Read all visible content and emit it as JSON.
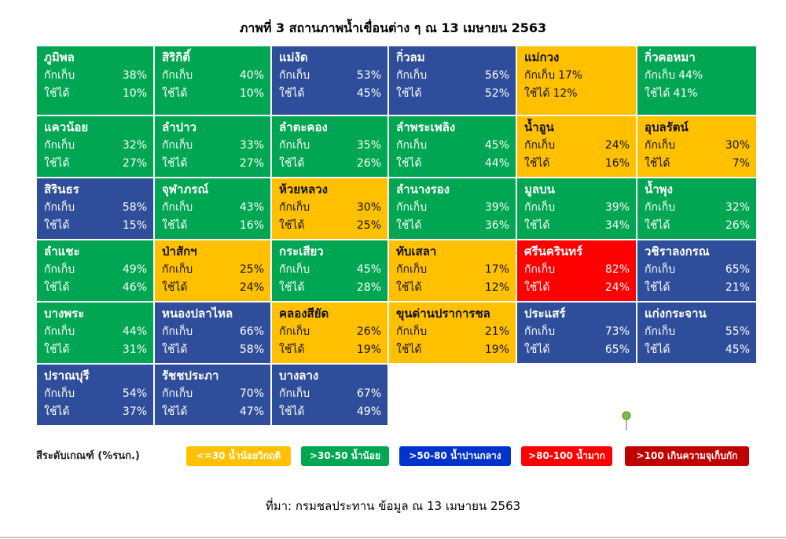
{
  "title": "ภาพที่ 3 สถานภาพน้ำเขื่อนต่าง ๆ ณ 13 เมษายน 2563",
  "labels": {
    "storage": "กักเก็บ",
    "usable": "ใช้ได้"
  },
  "colors": {
    "yellow": "#ffc000",
    "green": "#00a651",
    "blue": "#2e4d9a",
    "red": "#ff0000",
    "darkred": "#c00000",
    "legend_blue": "#0033cc",
    "pin": "#7ac143"
  },
  "chart_data": {
    "type": "heatmap",
    "title": "ภาพที่ 3 สถานภาพน้ำเขื่อนต่าง ๆ ณ 13 เมษายน 2563",
    "columns": 6,
    "dams": [
      {
        "name": "ภูมิพล",
        "storage": "38%",
        "usable": "10%",
        "color": "green"
      },
      {
        "name": "สิริกิติ์",
        "storage": "40%",
        "usable": "10%",
        "color": "green"
      },
      {
        "name": "แม่งัด",
        "storage": "53%",
        "usable": "45%",
        "color": "blue"
      },
      {
        "name": "กิ่วลม",
        "storage": "56%",
        "usable": "52%",
        "color": "blue"
      },
      {
        "name": "แม่กวง",
        "storage": "17%",
        "usable": "12%",
        "color": "yellow",
        "inline": true
      },
      {
        "name": "กิ่วคอหมา",
        "storage": "44%",
        "usable": "41%",
        "color": "green",
        "inline": true
      },
      {
        "name": "แควน้อย",
        "storage": "32%",
        "usable": "27%",
        "color": "green"
      },
      {
        "name": "ลำปาว",
        "storage": "33%",
        "usable": "27%",
        "color": "green"
      },
      {
        "name": "ลำตะคอง",
        "storage": "35%",
        "usable": "26%",
        "color": "green"
      },
      {
        "name": "ลำพระเพลิง",
        "storage": "45%",
        "usable": "44%",
        "color": "green"
      },
      {
        "name": "น้ำอูน",
        "storage": "24%",
        "usable": "16%",
        "color": "yellow"
      },
      {
        "name": "อุบลรัตน์",
        "storage": "30%",
        "usable": "7%",
        "color": "yellow"
      },
      {
        "name": "สิรินธร",
        "storage": "58%",
        "usable": "15%",
        "color": "blue"
      },
      {
        "name": "จุฬาภรณ์",
        "storage": "43%",
        "usable": "16%",
        "color": "green"
      },
      {
        "name": "ห้วยหลวง",
        "storage": "30%",
        "usable": "25%",
        "color": "yellow"
      },
      {
        "name": "ลำนางรอง",
        "storage": "39%",
        "usable": "36%",
        "color": "green"
      },
      {
        "name": "มูลบน",
        "storage": "39%",
        "usable": "34%",
        "color": "green"
      },
      {
        "name": "น้ำพุง",
        "storage": "32%",
        "usable": "26%",
        "color": "green"
      },
      {
        "name": "ลำแชะ",
        "storage": "49%",
        "usable": "46%",
        "color": "green"
      },
      {
        "name": "ป่าสักฯ",
        "storage": "25%",
        "usable": "24%",
        "color": "yellow"
      },
      {
        "name": "กระเสียว",
        "storage": "45%",
        "usable": "28%",
        "color": "green"
      },
      {
        "name": "ทับเสลา",
        "storage": "17%",
        "usable": "12%",
        "color": "yellow"
      },
      {
        "name": "ศรีนครินทร์",
        "storage": "82%",
        "usable": "24%",
        "color": "red"
      },
      {
        "name": "วชิราลงกรณ",
        "storage": "65%",
        "usable": "21%",
        "color": "blue"
      },
      {
        "name": "บางพระ",
        "storage": "44%",
        "usable": "31%",
        "color": "green"
      },
      {
        "name": "หนองปลาไหล",
        "storage": "66%",
        "usable": "58%",
        "color": "blue"
      },
      {
        "name": "คลองสียัด",
        "storage": "26%",
        "usable": "19%",
        "color": "yellow"
      },
      {
        "name": "ขุนด่านปราการชล",
        "storage": "21%",
        "usable": "19%",
        "color": "yellow"
      },
      {
        "name": "ประแสร์",
        "storage": "73%",
        "usable": "65%",
        "color": "blue"
      },
      {
        "name": "แก่งกระจาน",
        "storage": "55%",
        "usable": "45%",
        "color": "blue"
      },
      {
        "name": "ปราณบุรี",
        "storage": "54%",
        "usable": "37%",
        "color": "blue"
      },
      {
        "name": "รัชชประภา",
        "storage": "70%",
        "usable": "47%",
        "color": "blue"
      },
      {
        "name": "บางลาง",
        "storage": "67%",
        "usable": "49%",
        "color": "blue"
      }
    ]
  },
  "legend": {
    "label": "สีระดับเกณฑ์ (%รนก.)",
    "items": [
      {
        "text": "<=30 น้ำน้อยวิกฤติ",
        "color": "yellow"
      },
      {
        "text": ">30-50 น้ำน้อย",
        "color": "green"
      },
      {
        "text": ">50-80 น้ำปานกลาง",
        "color": "legend_blue"
      },
      {
        "text": ">80-100 น้ำมาก",
        "color": "red"
      },
      {
        "text": ">100 เกินความจุเก็บกัก",
        "color": "darkred"
      }
    ]
  },
  "source": "ที่มา: กรมชลประทาน ข้อมูล ณ 13 เมษายน 2563"
}
